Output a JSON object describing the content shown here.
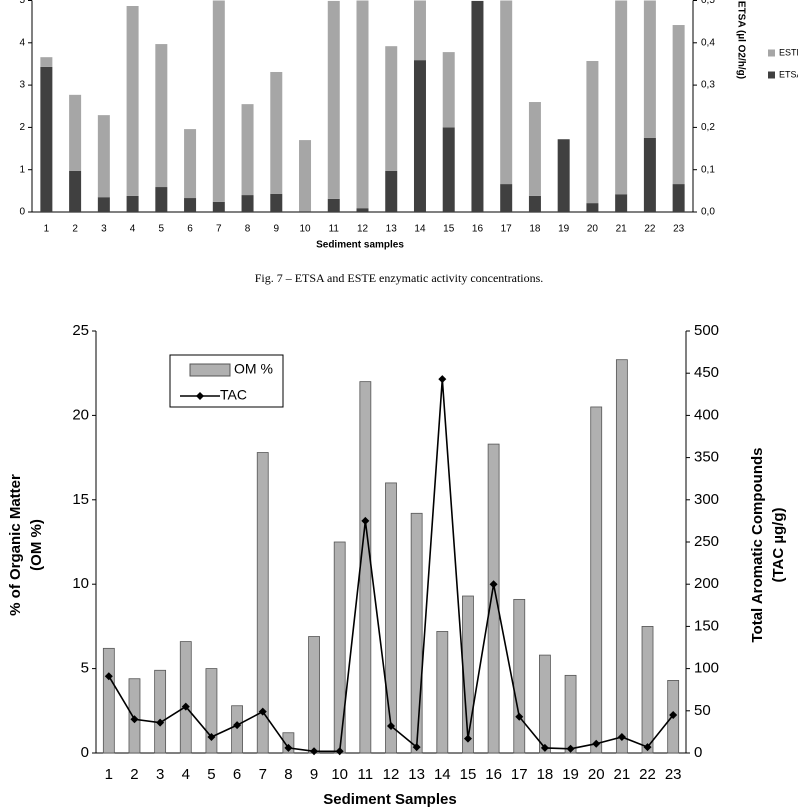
{
  "chart_data": [
    {
      "type": "bar",
      "stacked": true,
      "xlabel": "Sediment samples",
      "y2label": "ETSA (µl O2/h/g)",
      "categories": [
        "1",
        "2",
        "3",
        "4",
        "5",
        "6",
        "7",
        "8",
        "9",
        "10",
        "11",
        "12",
        "13",
        "14",
        "15",
        "16",
        "17",
        "18",
        "19",
        "20",
        "21",
        "22",
        "23"
      ],
      "series": [
        {
          "name": "ESTE",
          "color": "#a6a6a6",
          "axis": "y",
          "values": [
            0.23,
            1.8,
            1.94,
            4.49,
            3.38,
            1.63,
            4.76,
            2.15,
            2.88,
            1.68,
            4.68,
            4.91,
            2.95,
            1.41,
            1.78,
            0,
            4.34,
            2.22,
            0,
            3.36,
            4.58,
            3.25,
            3.76
          ]
        },
        {
          "name": "ETSA",
          "color": "#404040",
          "axis": "y2",
          "values": [
            0.343,
            0.097,
            0.035,
            0.038,
            0.059,
            0.033,
            0.024,
            0.04,
            0.043,
            0.002,
            0.031,
            0.009,
            0.097,
            0.359,
            0.2,
            0.499,
            0.066,
            0.038,
            0.172,
            0.021,
            0.042,
            0.175,
            0.066
          ]
        }
      ],
      "ylim": [
        0,
        5
      ],
      "yticks": [
        0,
        1,
        2,
        3,
        4,
        5
      ],
      "y2lim": [
        0,
        0.5
      ],
      "y2ticks": [
        {
          "value": 0,
          "label": "0,0"
        },
        {
          "value": 0.1,
          "label": "0,1"
        },
        {
          "value": 0.2,
          "label": "0,2"
        },
        {
          "value": 0.3,
          "label": "0,3"
        },
        {
          "value": 0.4,
          "label": "0,4"
        },
        {
          "value": 0.5,
          "label": "0,5"
        }
      ],
      "legend": "right"
    },
    {
      "type": "combo",
      "xlabel": "Sediment Samples",
      "ylabel": [
        "% of Organic Matter",
        "(OM %)"
      ],
      "y2label": [
        "Total Aromatic Compounds",
        "(TAC µg/g)"
      ],
      "categories": [
        "1",
        "2",
        "3",
        "4",
        "5",
        "6",
        "7",
        "8",
        "9",
        "10",
        "11",
        "12",
        "13",
        "14",
        "15",
        "16",
        "17",
        "18",
        "19",
        "20",
        "21",
        "22",
        "23"
      ],
      "series": [
        {
          "name": "OM %",
          "type": "bar",
          "color": "#b0b0b0",
          "axis": "y",
          "values": [
            6.2,
            4.4,
            4.9,
            6.6,
            5.0,
            2.8,
            17.8,
            1.2,
            6.9,
            12.5,
            22.0,
            16.0,
            14.2,
            7.2,
            9.3,
            18.3,
            9.1,
            5.8,
            4.6,
            20.5,
            23.3,
            7.5,
            4.3
          ]
        },
        {
          "name": "TAC",
          "type": "line",
          "color": "#000000",
          "axis": "y2",
          "values": [
            91,
            40,
            36,
            55,
            19,
            33,
            49,
            6,
            2,
            2,
            275,
            32,
            7,
            443,
            17,
            200,
            43,
            6,
            5,
            11,
            19,
            7,
            45
          ]
        }
      ],
      "ylim": [
        0,
        25
      ],
      "yticks": [
        0,
        5,
        10,
        15,
        20,
        25
      ],
      "y2lim": [
        0,
        500
      ],
      "y2ticks": [
        0,
        50,
        100,
        150,
        200,
        250,
        300,
        350,
        400,
        450,
        500
      ],
      "legend": "upper left"
    }
  ],
  "caption": "Fig. 7 – ETSA and ESTE enzymatic activity concentrations."
}
